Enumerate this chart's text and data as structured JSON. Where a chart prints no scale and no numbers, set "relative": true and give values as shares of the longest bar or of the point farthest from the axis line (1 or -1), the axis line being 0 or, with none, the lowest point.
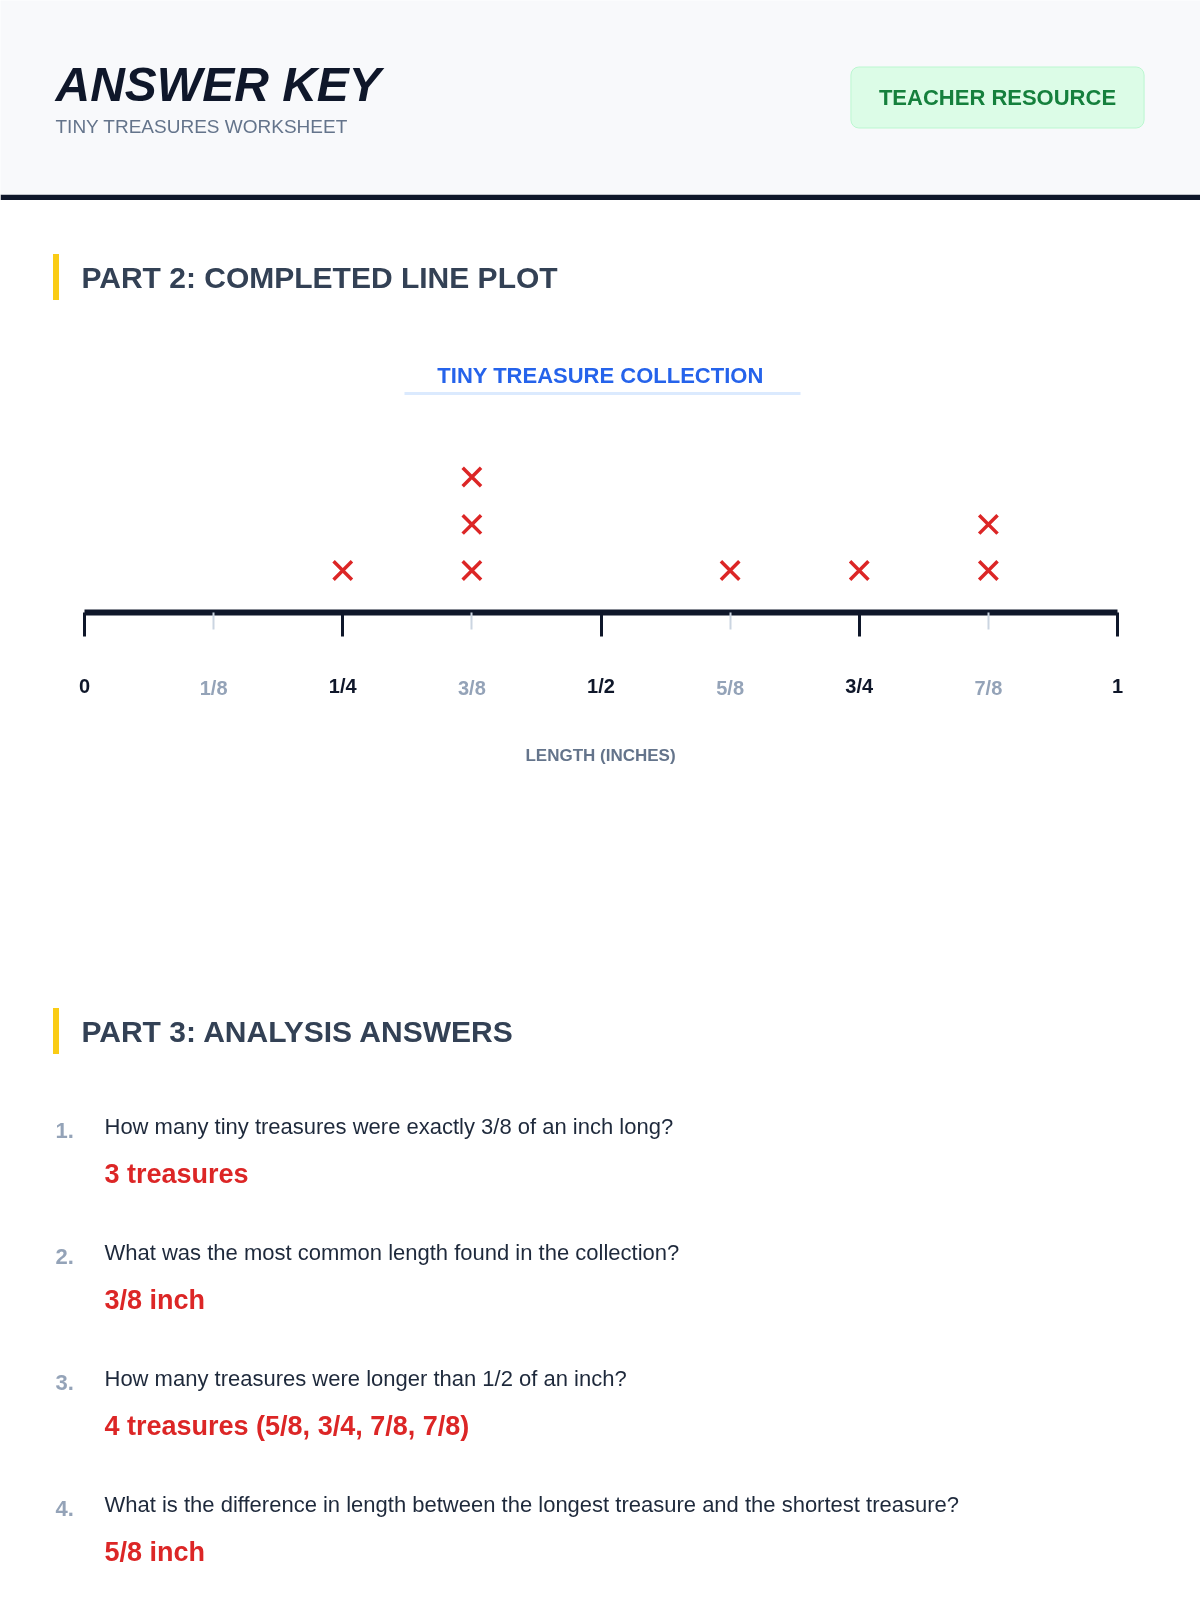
{
  "chart_data": {
    "type": "scatter",
    "title": "TINY TREASURE COLLECTION",
    "xlabel": "LENGTH (INCHES)",
    "relative": true,
    "marker": "cross",
    "xlim": [
      0,
      1
    ],
    "xticks": [
      0,
      {
        "value": 0.125,
        "label": "1/8"
      },
      {
        "value": 0.25,
        "label": "1/4"
      },
      {
        "value": 0.375,
        "label": "3/8"
      },
      {
        "value": 0.5,
        "label": "1/2"
      },
      {
        "value": 0.625,
        "label": "5/8"
      },
      {
        "value": 0.75,
        "label": "3/4"
      },
      {
        "value": 0.875,
        "label": "7/8"
      },
      1
    ],
    "series": [
      {
        "color": "#dc2626",
        "x": [
          0.25,
          0.375,
          0.375,
          0.375,
          0.625,
          0.75,
          0.875,
          0.875
        ],
        "values": [
          0.31,
          0.31,
          0.65,
          1,
          0.31,
          0.31,
          0.31,
          0.65
        ]
      }
    ],
    "annotations": [
      "ANSWER KEY",
      "TINY TREASURES WORKSHEET",
      "TEACHER RESOURCE",
      "PART 2: COMPLETED LINE PLOT",
      "PART 3: ANALYSIS ANSWERS",
      "1.",
      "How many tiny treasures were exactly 3/8 of an inch long?",
      "3 treasures",
      "2.",
      "What was the most common length found in the collection?",
      "3/8 inch",
      "3.",
      "How many treasures were longer than 1/2 of an inch?",
      "4 treasures (5/8, 3/4, 7/8, 7/8)",
      "4.",
      "What is the difference in length between the longest treasure and the shortest treasure?",
      "5/8 inch"
    ]
  }
}
